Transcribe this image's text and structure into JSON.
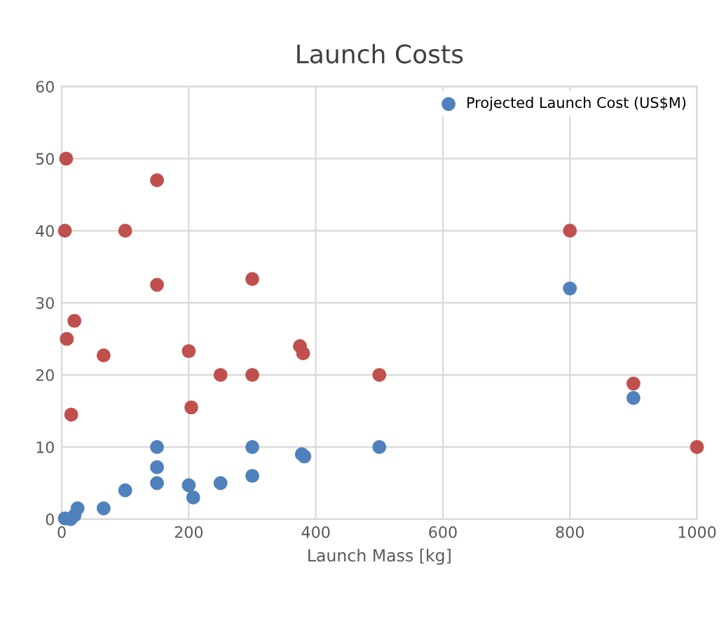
{
  "chart_data": {
    "type": "scatter",
    "title": "Launch Costs",
    "xlabel": "Launch Mass [kg]",
    "xlim": [
      0,
      1000
    ],
    "xticks": [
      0,
      200,
      400,
      600,
      800,
      1000
    ],
    "ylim": [
      0,
      60
    ],
    "yticks": [
      0,
      10,
      20,
      30,
      40,
      50,
      60
    ],
    "grid": true,
    "legend": "top right",
    "marker": "circle",
    "series": [
      {
        "name": "Projected Launch Cost (US$M)",
        "color": "#4f81bd",
        "x": [
          5,
          14,
          20,
          25,
          66,
          100,
          150,
          150,
          150,
          200,
          207,
          250,
          300,
          300,
          378,
          382,
          500,
          800,
          900
        ],
        "values": [
          0.1,
          0,
          0.5,
          1.5,
          1.5,
          4,
          10,
          7.2,
          5,
          4.7,
          3,
          5,
          10,
          6,
          9,
          8.7,
          10,
          32,
          16.8
        ]
      },
      {
        "color": "#c0504d",
        "x": [
          7,
          5,
          8,
          20,
          15,
          66,
          100,
          150,
          150,
          200,
          204,
          250,
          300,
          300,
          375,
          380,
          500,
          800,
          900,
          1000
        ],
        "values": [
          50,
          40,
          25,
          27.5,
          14.5,
          22.7,
          40,
          47,
          32.5,
          23.3,
          15.5,
          20,
          33.3,
          20,
          24,
          23,
          20,
          40,
          18.8,
          10
        ]
      }
    ]
  }
}
